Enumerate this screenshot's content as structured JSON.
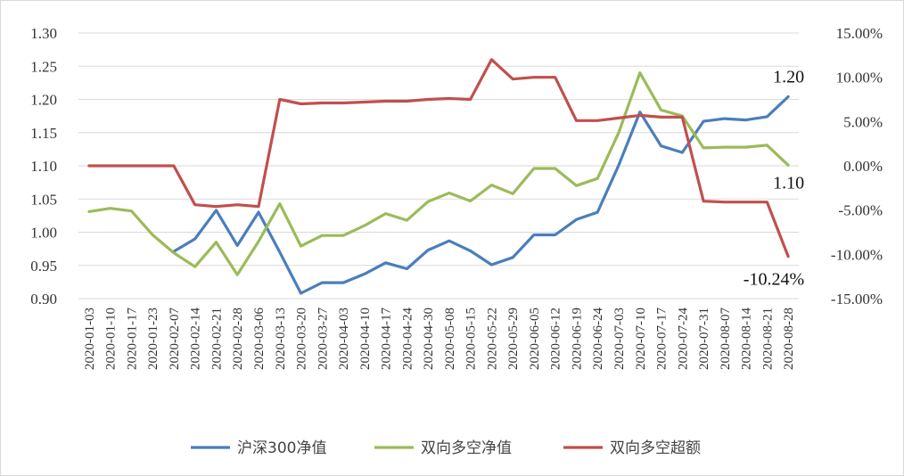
{
  "chart_data": {
    "type": "line",
    "title": "",
    "x": [
      "2020-01-03",
      "2020-01-10",
      "2020-01-17",
      "2020-01-23",
      "2020-02-07",
      "2020-02-14",
      "2020-02-21",
      "2020-02-28",
      "2020-03-06",
      "2020-03-13",
      "2020-03-20",
      "2020-03-27",
      "2020-04-03",
      "2020-04-10",
      "2020-04-17",
      "2020-04-24",
      "2020-04-30",
      "2020-05-08",
      "2020-05-15",
      "2020-05-22",
      "2020-05-29",
      "2020-06-05",
      "2020-06-12",
      "2020-06-19",
      "2020-06-24",
      "2020-07-03",
      "2020-07-10",
      "2020-07-17",
      "2020-07-24",
      "2020-07-31",
      "2020-08-07",
      "2020-08-14",
      "2020-08-21",
      "2020-08-28"
    ],
    "xlabels_shown": [
      "2020-01-03",
      "2020-01-10",
      "2020-01-17",
      "2020-01-23",
      "2020-02-07",
      "2020-02-14",
      "2020-02-21",
      "2020-02-28",
      "2020-03-06",
      "2020-03-13",
      "2020-03-20",
      "2020-03-27",
      "2020-04-03",
      "2020-04-10",
      "2020-04-17",
      "2020-04-24",
      "2020-04-30",
      "2020-05-08",
      "2020-05-15",
      "2020-05-22",
      "2020-05-29",
      "2020-06-05",
      "2020-06-12",
      "2020-06-19",
      "2020-06-24",
      "2020-07-03",
      "2020-07-10",
      "2020-07-17",
      "2020-07-24",
      "2020-07-31",
      "2020-08-07",
      "2020-08-14",
      "2020-08-21",
      "2020-08-28"
    ],
    "y_left": {
      "min": 0.9,
      "max": 1.3,
      "ticks": [
        "1.30",
        "1.25",
        "1.20",
        "1.15",
        "1.10",
        "1.05",
        "1.00",
        "0.95",
        "0.90"
      ]
    },
    "y_right": {
      "min": -0.15,
      "max": 0.15,
      "ticks": [
        "15.00%",
        "10.00%",
        "5.00%",
        "0.00%",
        "-5.00%",
        "-10.00%",
        "-15.00%"
      ]
    },
    "grid": true,
    "legend_position": "bottom",
    "series": [
      {
        "name": "沪深300净值",
        "axis": "left",
        "color": "#4a7ebb",
        "values": [
          null,
          null,
          null,
          null,
          0.971,
          0.99,
          1.033,
          0.98,
          1.03,
          0.97,
          0.908,
          0.924,
          0.924,
          0.937,
          0.954,
          0.945,
          0.973,
          0.987,
          0.972,
          0.951,
          0.962,
          0.996,
          0.996,
          1.019,
          1.03,
          1.101,
          1.181,
          1.13,
          1.12,
          1.167,
          1.171,
          1.169,
          1.174,
          1.204
        ]
      },
      {
        "name": "双向多空净值",
        "axis": "left",
        "color": "#9bbb59",
        "values": [
          1.031,
          1.036,
          1.032,
          0.996,
          0.969,
          0.948,
          0.985,
          0.936,
          0.986,
          1.043,
          0.979,
          0.995,
          0.995,
          1.01,
          1.028,
          1.018,
          1.046,
          1.059,
          1.047,
          1.071,
          1.058,
          1.096,
          1.096,
          1.07,
          1.081,
          1.15,
          1.24,
          1.184,
          1.175,
          1.127,
          1.128,
          1.128,
          1.131,
          1.101
        ]
      },
      {
        "name": "双向多空超额",
        "axis": "right",
        "color": "#c0504d",
        "values": [
          0.0,
          0.0,
          0.0,
          0.0,
          0.0,
          -0.044,
          -0.046,
          -0.044,
          -0.046,
          0.075,
          0.07,
          0.071,
          0.071,
          0.072,
          0.073,
          0.073,
          0.075,
          0.076,
          0.075,
          0.12,
          0.098,
          0.1,
          0.1,
          0.051,
          0.051,
          0.054,
          0.057,
          0.055,
          0.055,
          -0.04,
          -0.041,
          -0.041,
          -0.041,
          -0.1024
        ]
      }
    ],
    "annotations": [
      {
        "text": "1.20",
        "series": "沪深300净值",
        "index": 33
      },
      {
        "text": "1.10",
        "series": "双向多空净值",
        "index": 33
      },
      {
        "text": "-10.24%",
        "series": "双向多空超额",
        "index": 33
      }
    ]
  }
}
